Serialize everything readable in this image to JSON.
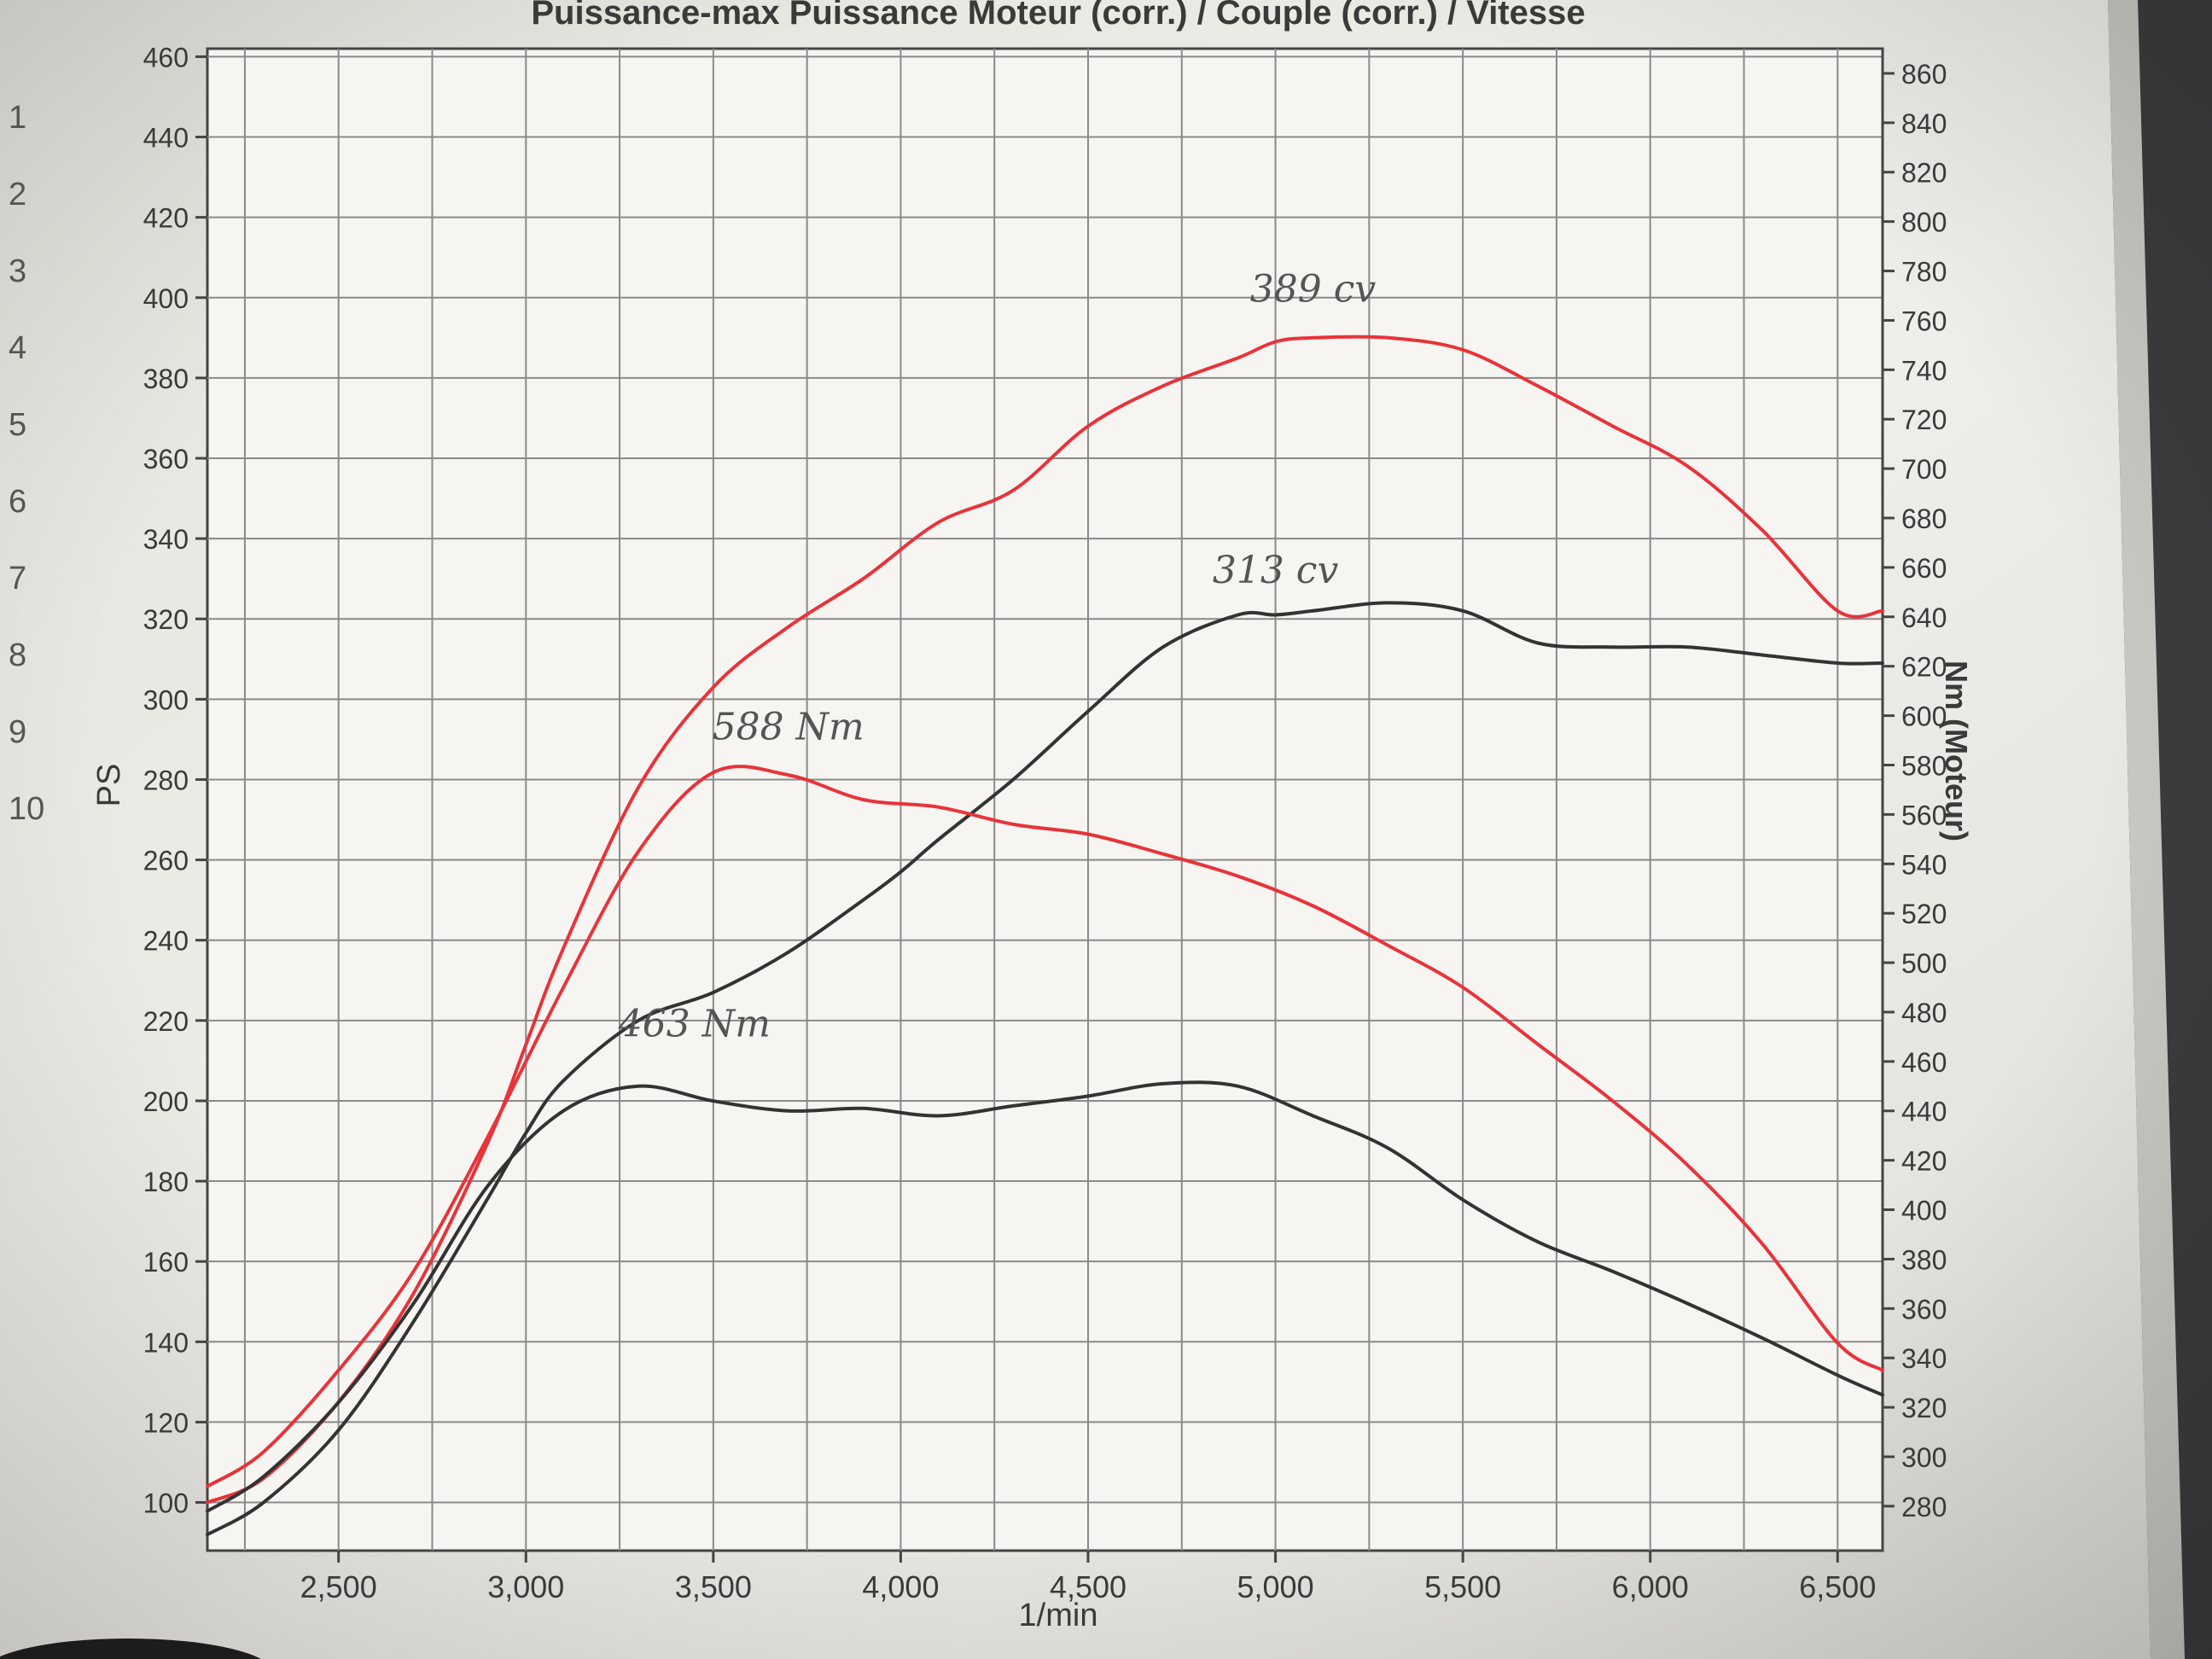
{
  "chart_data": {
    "type": "line",
    "title": "Puissance-max Puissance Moteur (corr.) / Couple (corr.) / Vitesse",
    "xlabel": "1/min",
    "ylabel_left": "PS",
    "ylabel_right": "Nm (Moteur)",
    "xlim": [
      2150,
      6620
    ],
    "ylim_left": [
      88,
      462
    ],
    "ylim_right": [
      262,
      870
    ],
    "x_ticks": [
      2500,
      3000,
      3500,
      4000,
      4500,
      5000,
      5500,
      6000,
      6500
    ],
    "x_tick_labels": [
      "2,500",
      "3,000",
      "3,500",
      "4,000",
      "4,500",
      "5,000",
      "5,500",
      "6,000",
      "6,500"
    ],
    "y_left_ticks": [
      100,
      120,
      140,
      160,
      180,
      200,
      220,
      240,
      260,
      280,
      300,
      320,
      340,
      360,
      380,
      400,
      420,
      440,
      460
    ],
    "y_right_ticks": [
      280,
      300,
      320,
      340,
      360,
      380,
      400,
      420,
      440,
      460,
      480,
      500,
      520,
      540,
      560,
      580,
      600,
      620,
      640,
      660,
      680,
      700,
      720,
      740,
      760,
      780,
      800,
      820,
      840,
      860
    ],
    "grid": true,
    "series": [
      {
        "axis": "left",
        "color": "#e8333a",
        "x": [
          2150,
          2300,
          2500,
          2700,
          2900,
          3000,
          3100,
          3300,
          3500,
          3700,
          3900,
          4100,
          4300,
          4500,
          4700,
          4900,
          5000,
          5100,
          5300,
          5500,
          5700,
          5900,
          6100,
          6300,
          6500,
          6620
        ],
        "y": [
          100,
          106,
          125,
          152,
          190,
          214,
          238,
          278,
          303,
          318,
          330,
          344,
          352,
          368,
          378,
          385,
          389,
          390,
          390,
          387,
          378,
          368,
          358,
          342,
          322,
          322
        ]
      },
      {
        "axis": "left",
        "color": "#333333",
        "x": [
          2150,
          2300,
          2500,
          2700,
          2900,
          3000,
          3100,
          3300,
          3500,
          3700,
          3900,
          4000,
          4100,
          4300,
          4500,
          4700,
          4900,
          5000,
          5100,
          5300,
          5500,
          5700,
          5900,
          6100,
          6300,
          6500,
          6620
        ],
        "y": [
          92,
          100,
          118,
          145,
          176,
          192,
          205,
          220,
          227,
          237,
          250,
          257,
          265,
          280,
          297,
          313,
          321,
          321,
          322,
          324,
          322,
          314,
          313,
          313,
          311,
          309,
          309
        ]
      },
      {
        "axis": "right",
        "color": "#e8333a",
        "x": [
          2150,
          2300,
          2500,
          2700,
          2900,
          3100,
          3300,
          3500,
          3700,
          3900,
          4100,
          4300,
          4500,
          4700,
          4900,
          5100,
          5300,
          5500,
          5700,
          5900,
          6100,
          6300,
          6500,
          6620
        ],
        "y": [
          288,
          302,
          335,
          375,
          430,
          490,
          545,
          577,
          576,
          566,
          563,
          556,
          552,
          544,
          535,
          523,
          507,
          490,
          467,
          444,
          418,
          386,
          346,
          335
        ]
      },
      {
        "axis": "right",
        "color": "#333333",
        "x": [
          2150,
          2300,
          2500,
          2700,
          2900,
          3100,
          3300,
          3500,
          3700,
          3900,
          4100,
          4300,
          4500,
          4700,
          4900,
          5100,
          5300,
          5500,
          5700,
          5900,
          6100,
          6300,
          6500,
          6620
        ],
        "y": [
          278,
          292,
          322,
          362,
          410,
          440,
          450,
          444,
          440,
          441,
          438,
          442,
          446,
          451,
          450,
          438,
          425,
          404,
          387,
          375,
          362,
          348,
          333,
          325
        ]
      }
    ],
    "annotations": [
      {
        "text": "389 cv",
        "x": 5100,
        "y_axis": "left",
        "y": 399
      },
      {
        "text": "313 cv",
        "x": 5000,
        "y_axis": "left",
        "y": 329
      },
      {
        "text": "588 Nm",
        "x": 3700,
        "y_axis": "left",
        "y": 290
      },
      {
        "text": "463 Nm",
        "x": 3450,
        "y_axis": "left",
        "y": 216
      }
    ]
  },
  "page_margin_numbers": [
    "1",
    "2",
    "3",
    "4",
    "5",
    "6",
    "7",
    "8",
    "9",
    "10"
  ]
}
